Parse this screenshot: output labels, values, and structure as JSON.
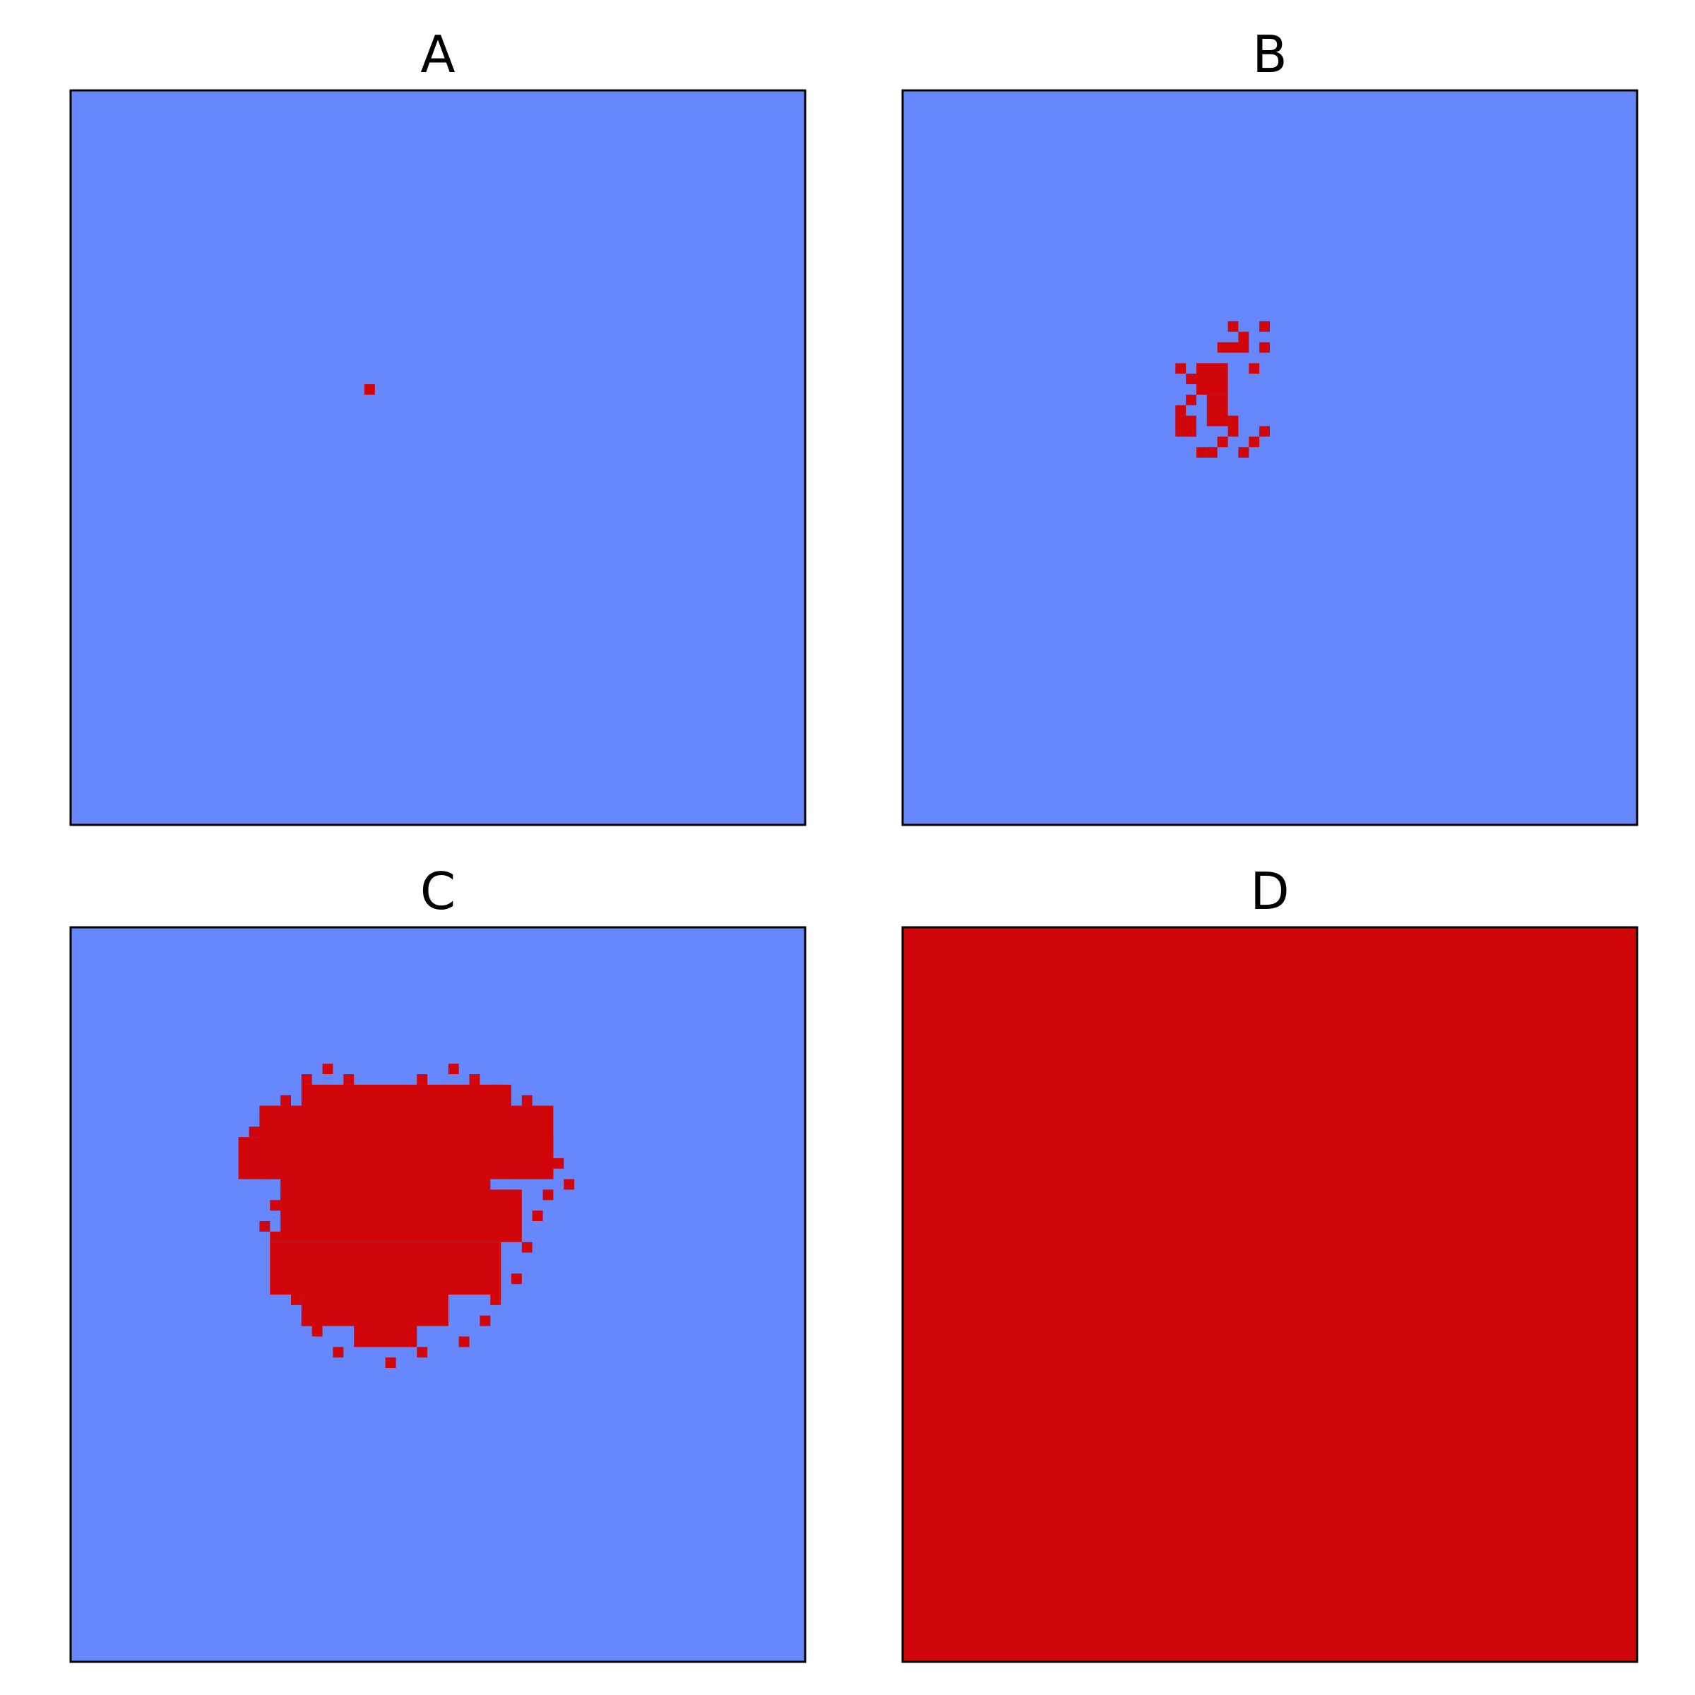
{
  "figure": {
    "colors": {
      "susceptible": "#6787fc",
      "infected": "#d0060a",
      "frame": "#000000",
      "background": "#ffffff"
    }
  },
  "chart_data": [
    {
      "type": "heatmap",
      "title": "A",
      "grid": false,
      "grid_size": [
        70,
        70
      ],
      "blocks": [
        {
          "cols": [
            28,
            29
          ],
          "rows": [
            28,
            29
          ],
          "state": "infected"
        }
      ],
      "scatter": []
    },
    {
      "type": "heatmap",
      "title": "B",
      "grid": false,
      "grid_size": [
        70,
        70
      ],
      "blocks": [
        {
          "cols": [
            28,
            31
          ],
          "rows": [
            26,
            29
          ],
          "state": "infected"
        },
        {
          "cols": [
            30,
            33
          ],
          "rows": [
            24,
            25
          ],
          "state": "infected"
        },
        {
          "cols": [
            29,
            31
          ],
          "rows": [
            29,
            32
          ],
          "state": "infected"
        },
        {
          "cols": [
            26,
            28
          ],
          "rows": [
            31,
            33
          ],
          "state": "infected"
        },
        {
          "cols": [
            31,
            32
          ],
          "rows": [
            32,
            33
          ],
          "state": "infected"
        }
      ],
      "scatter": [
        [
          34,
          22
        ],
        [
          31,
          22
        ],
        [
          32,
          23
        ],
        [
          34,
          24
        ],
        [
          33,
          26
        ],
        [
          26,
          26
        ],
        [
          27,
          27
        ],
        [
          27,
          29
        ],
        [
          26,
          30
        ],
        [
          30,
          30
        ],
        [
          31,
          31
        ],
        [
          27,
          32
        ],
        [
          28,
          34
        ],
        [
          29,
          34
        ],
        [
          30,
          33
        ],
        [
          32,
          34
        ],
        [
          33,
          33
        ],
        [
          34,
          32
        ]
      ]
    },
    {
      "type": "heatmap",
      "title": "C",
      "grid": false,
      "grid_size": [
        70,
        70
      ],
      "blocks": [
        {
          "cols": [
            20,
            40
          ],
          "rows": [
            19,
            25
          ],
          "state": "infected"
        },
        {
          "cols": [
            18,
            46
          ],
          "rows": [
            17,
            24
          ],
          "state": "infected"
        },
        {
          "cols": [
            22,
            42
          ],
          "rows": [
            15,
            19
          ],
          "state": "infected"
        },
        {
          "cols": [
            20,
            43
          ],
          "rows": [
            25,
            30
          ],
          "state": "infected"
        },
        {
          "cols": [
            19,
            41
          ],
          "rows": [
            30,
            35
          ],
          "state": "infected"
        },
        {
          "cols": [
            22,
            36
          ],
          "rows": [
            35,
            38
          ],
          "state": "infected"
        },
        {
          "cols": [
            27,
            33
          ],
          "rows": [
            38,
            40
          ],
          "state": "infected"
        },
        {
          "cols": [
            16,
            22
          ],
          "rows": [
            20,
            24
          ],
          "state": "infected"
        },
        {
          "cols": [
            42,
            46
          ],
          "rows": [
            21,
            24
          ],
          "state": "infected"
        }
      ],
      "scatter": [
        [
          17,
          22
        ],
        [
          18,
          23
        ],
        [
          20,
          25
        ],
        [
          19,
          26
        ],
        [
          18,
          28
        ],
        [
          19,
          29
        ],
        [
          20,
          31
        ],
        [
          21,
          33
        ],
        [
          21,
          35
        ],
        [
          22,
          37
        ],
        [
          23,
          38
        ],
        [
          25,
          40
        ],
        [
          30,
          41
        ],
        [
          33,
          40
        ],
        [
          37,
          39
        ],
        [
          39,
          37
        ],
        [
          40,
          35
        ],
        [
          42,
          33
        ],
        [
          43,
          30
        ],
        [
          44,
          27
        ],
        [
          45,
          25
        ],
        [
          47,
          24
        ],
        [
          46,
          22
        ],
        [
          45,
          20
        ],
        [
          44,
          18
        ],
        [
          43,
          16
        ],
        [
          40,
          15
        ],
        [
          38,
          14
        ],
        [
          36,
          13
        ],
        [
          33,
          14
        ],
        [
          32,
          16
        ],
        [
          29,
          16
        ],
        [
          26,
          14
        ],
        [
          24,
          13
        ],
        [
          22,
          14
        ],
        [
          20,
          16
        ],
        [
          18,
          18
        ],
        [
          17,
          19
        ]
      ]
    },
    {
      "type": "heatmap",
      "title": "D",
      "grid": false,
      "grid_size": [
        70,
        70
      ],
      "blocks": [
        {
          "cols": [
            0,
            70
          ],
          "rows": [
            0,
            70
          ],
          "state": "infected"
        }
      ],
      "scatter": []
    }
  ]
}
